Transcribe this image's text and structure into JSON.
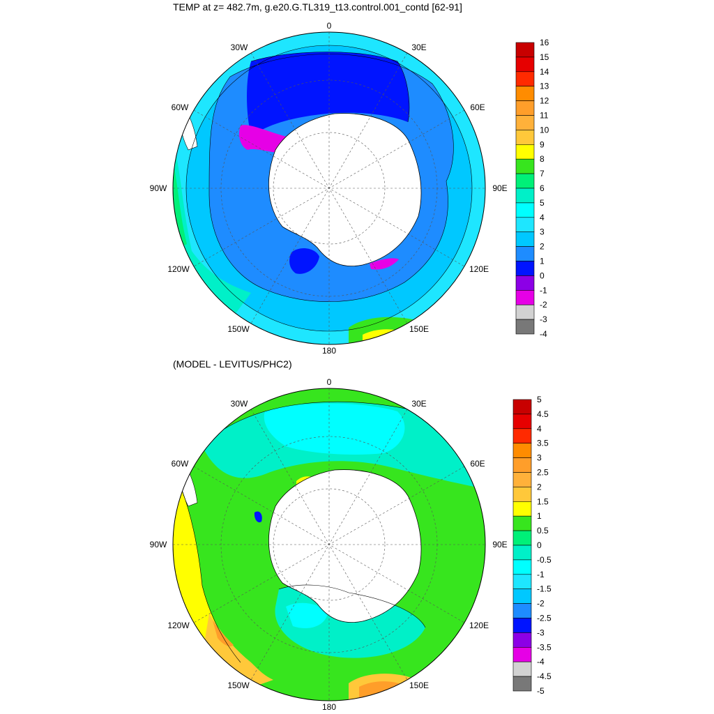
{
  "panels": [
    {
      "title": "TEMP at z= 482.7m, g.e20.G.TL319_t13.control.001_contd [62-91]",
      "lon_labels": [
        "0",
        "30E",
        "60E",
        "90E",
        "120E",
        "150E",
        "180",
        "150W",
        "120W",
        "90W",
        "60W",
        "30W"
      ],
      "colorbar": {
        "labels": [
          "16",
          "15",
          "14",
          "13",
          "12",
          "11",
          "10",
          "9",
          "8",
          "7",
          "6",
          "5",
          "4",
          "3",
          "2",
          "1",
          "0",
          "-1",
          "-2",
          "-3",
          "-4"
        ],
        "colors": [
          "#c80000",
          "#e60000",
          "#ff2a00",
          "#ff8c00",
          "#ff9e2a",
          "#ffb13a",
          "#ffc83a",
          "#ffff00",
          "#37e51e",
          "#00f078",
          "#00f0c8",
          "#00ffff",
          "#1ee6ff",
          "#00c8ff",
          "#1e8cff",
          "#0014ff",
          "#8c00e6",
          "#e600e6",
          "#d2d2d2",
          "#787878"
        ]
      }
    },
    {
      "title": "(MODEL - LEVITUS/PHC2)",
      "lon_labels": [
        "0",
        "30E",
        "60E",
        "90E",
        "120E",
        "150E",
        "180",
        "150W",
        "120W",
        "90W",
        "60W",
        "30W"
      ],
      "colorbar": {
        "labels": [
          "5",
          "4.5",
          "4",
          "3.5",
          "3",
          "2.5",
          "2",
          "1.5",
          "1",
          "0.5",
          "0",
          "-0.5",
          "-1",
          "-1.5",
          "-2",
          "-2.5",
          "-3",
          "-3.5",
          "-4",
          "-4.5",
          "-5"
        ],
        "colors": [
          "#c80000",
          "#e60000",
          "#ff2a00",
          "#ff8c00",
          "#ff9e2a",
          "#ffb13a",
          "#ffc83a",
          "#ffff00",
          "#37e51e",
          "#00f078",
          "#00f0c8",
          "#00ffff",
          "#1ee6ff",
          "#00c8ff",
          "#1e8cff",
          "#0014ff",
          "#8c00e6",
          "#e600e6",
          "#d2d2d2",
          "#787878"
        ]
      }
    }
  ],
  "colors": {
    "land": "#ffffff",
    "coast": "#000000",
    "grid": "#555555"
  }
}
